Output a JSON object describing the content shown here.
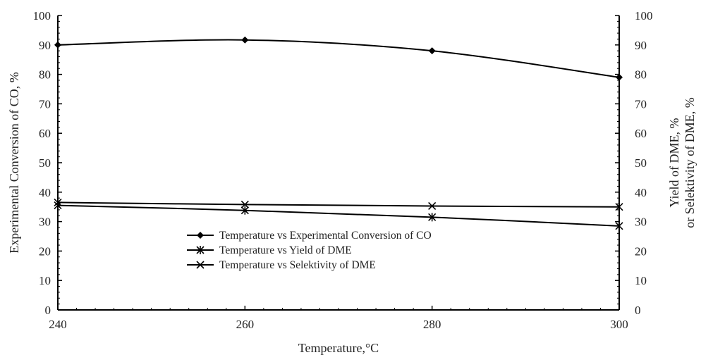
{
  "chart_data": {
    "type": "line",
    "title": "",
    "xlabel": "Temperature,°C",
    "ylabel_left": "Experimental Conversion of CO, %",
    "ylabel_right_lines": [
      "Yield of DME, %",
      "or Selektivity of DME, %"
    ],
    "x": [
      240,
      260,
      280,
      300
    ],
    "x_ticks": [
      "240",
      "260",
      "280",
      "300"
    ],
    "xlim": [
      240,
      300
    ],
    "ylim": [
      0,
      100
    ],
    "y_ticks": [
      "0",
      "10",
      "20",
      "30",
      "40",
      "50",
      "60",
      "70",
      "80",
      "90",
      "100"
    ],
    "grid": false,
    "legend_position": "center",
    "series": [
      {
        "name": "Temperature vs Experimental Conversion of CO",
        "values": [
          90,
          91.7,
          88,
          79
        ],
        "marker": "diamond",
        "axis": "left"
      },
      {
        "name": "Temperature vs Yield of DME",
        "values": [
          35.5,
          33.8,
          31.5,
          28.5
        ],
        "marker": "star",
        "axis": "right"
      },
      {
        "name": "Temperature vs Selektivity of DME",
        "values": [
          36.5,
          35.8,
          35.3,
          35
        ],
        "marker": "x",
        "axis": "right"
      }
    ]
  }
}
